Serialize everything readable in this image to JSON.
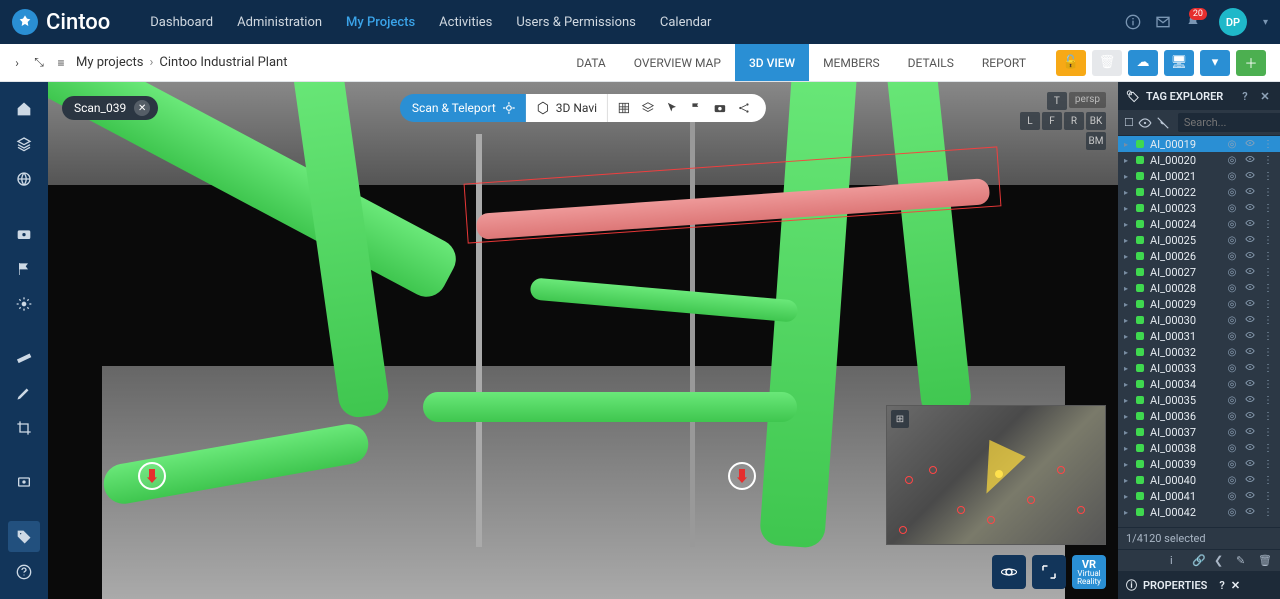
{
  "brand": {
    "name": "Cintoo"
  },
  "nav": {
    "items": [
      "Dashboard",
      "Administration",
      "My Projects",
      "Activities",
      "Users & Permissions",
      "Calendar"
    ],
    "active_index": 2
  },
  "notifications": {
    "count": "20"
  },
  "user": {
    "initials": "DP"
  },
  "breadcrumb": {
    "root": "My projects",
    "current": "Cintoo Industrial Plant"
  },
  "sub_tabs": {
    "items": [
      "DATA",
      "OVERVIEW MAP",
      "3D VIEW",
      "MEMBERS",
      "DETAILS",
      "REPORT"
    ],
    "active_index": 2
  },
  "scan": {
    "name": "Scan_039"
  },
  "pill": {
    "scan_teleport": "Scan & Teleport",
    "nav3d": "3D Navi"
  },
  "navcube": {
    "persp": "persp",
    "T": "T",
    "L": "L",
    "F": "F",
    "R": "R",
    "BK": "BK",
    "BM": "BM"
  },
  "vr_label": {
    "top": "VR",
    "bottom": "Virtual Reality"
  },
  "tag_panel": {
    "title": "TAG EXPLORER",
    "search_placeholder": "Search...",
    "selected_text": "1/4120 selected",
    "color": "#3fd84f",
    "selected_id": "AI_00019",
    "items": [
      "AI_00019",
      "AI_00020",
      "AI_00021",
      "AI_00022",
      "AI_00023",
      "AI_00024",
      "AI_00025",
      "AI_00026",
      "AI_00027",
      "AI_00028",
      "AI_00029",
      "AI_00030",
      "AI_00031",
      "AI_00032",
      "AI_00033",
      "AI_00034",
      "AI_00035",
      "AI_00036",
      "AI_00037",
      "AI_00038",
      "AI_00039",
      "AI_00040",
      "AI_00041",
      "AI_00042"
    ]
  },
  "props_panel": {
    "title": "PROPERTIES"
  },
  "colors": {
    "header_bg": "#0f2c4b",
    "accent": "#2a8fd4",
    "pipe_green": "#3fc64f",
    "pipe_red": "#d77",
    "avatar": "#1fb8c9"
  }
}
